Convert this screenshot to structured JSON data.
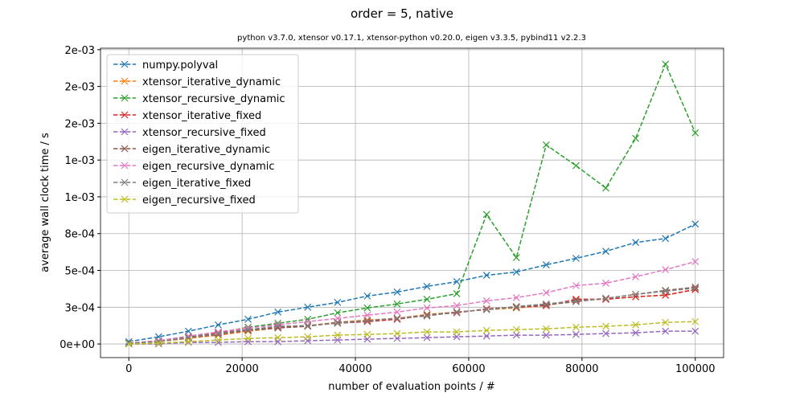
{
  "chart_data": {
    "type": "line",
    "title": "order = 5, native",
    "subtitle": "python v3.7.0, xtensor v0.17.1, xtensor-python v0.20.0, eigen v3.3.5, pybind11 v2.2.3",
    "x_label": "number of evaluation points / #",
    "y_label": "average wall clock time / s",
    "x": [
      0,
      5263,
      10526,
      15789,
      21053,
      26316,
      31579,
      36842,
      42105,
      47368,
      52632,
      57895,
      63158,
      68421,
      73684,
      78947,
      84211,
      89474,
      94737,
      100000
    ],
    "xlim": [
      -5000,
      105000
    ],
    "xticks": [
      0,
      20000,
      40000,
      60000,
      80000,
      100000
    ],
    "ylim": [
      -9.24e-05,
      0.00201
    ],
    "yticks": [
      {
        "value": 0,
        "label": "0e+00"
      },
      {
        "value": 0.00025,
        "label": "3e-04"
      },
      {
        "value": 0.0005,
        "label": "5e-04"
      },
      {
        "value": 0.00075,
        "label": "8e-04"
      },
      {
        "value": 0.001,
        "label": "1e-03"
      },
      {
        "value": 0.00125,
        "label": "1e-03"
      },
      {
        "value": 0.0015,
        "label": "2e-03"
      },
      {
        "value": 0.00175,
        "label": "2e-03"
      },
      {
        "value": 0.002,
        "label": "2e-03"
      }
    ],
    "grid": true,
    "legend": "upper-left",
    "series": [
      {
        "name": "numpy.polyval",
        "color": "#1f77b4",
        "values": [
          1.6e-05,
          4.9e-05,
          8.7e-05,
          0.00013,
          0.000168,
          0.000217,
          0.00025,
          0.000283,
          0.000326,
          0.000353,
          0.000391,
          0.000424,
          0.000467,
          0.000489,
          0.000538,
          0.000582,
          0.00063,
          0.00069,
          0.000717,
          0.000815
        ]
      },
      {
        "name": "xtensor_iterative_dynamic",
        "color": "#ff7f0e",
        "values": [
          5e-06,
          1.6e-05,
          3.8e-05,
          6e-05,
          8.7e-05,
          0.000109,
          0.000125,
          0.000147,
          0.000163,
          0.000174,
          0.000201,
          0.000217,
          0.000234,
          0.000245,
          0.000261,
          0.000299,
          0.000304,
          0.000321,
          0.000332,
          0.00037
        ]
      },
      {
        "name": "xtensor_recursive_dynamic",
        "color": "#2ca02c",
        "values": [
          5e-06,
          2.2e-05,
          4.9e-05,
          7.6e-05,
          0.000114,
          0.000141,
          0.000168,
          0.000212,
          0.000245,
          0.000272,
          0.000304,
          0.000342,
          0.00088,
          0.000587,
          0.001353,
          0.001212,
          0.00106,
          0.001397,
          0.001902,
          0.001435
        ]
      },
      {
        "name": "xtensor_iterative_fixed",
        "color": "#d62728",
        "values": [
          5e-06,
          2.2e-05,
          4.3e-05,
          7.6e-05,
          9.8e-05,
          0.000114,
          0.000125,
          0.000141,
          0.000152,
          0.000168,
          0.000196,
          0.000212,
          0.000239,
          0.00025,
          0.000261,
          0.000304,
          0.000304,
          0.000321,
          0.000332,
          0.00037
        ]
      },
      {
        "name": "xtensor_recursive_fixed",
        "color": "#9467bd",
        "values": [
          0,
          0,
          1.1e-05,
          1.1e-05,
          1.6e-05,
          1.6e-05,
          2.2e-05,
          2.7e-05,
          3.3e-05,
          3.8e-05,
          4.3e-05,
          4.9e-05,
          5.4e-05,
          6e-05,
          6e-05,
          6.5e-05,
          7.1e-05,
          7.6e-05,
          8.7e-05,
          8.7e-05
        ]
      },
      {
        "name": "eigen_iterative_dynamic",
        "color": "#8c564b",
        "values": [
          5e-06,
          1.6e-05,
          4.3e-05,
          6.5e-05,
          9.2e-05,
          0.000109,
          0.00012,
          0.000147,
          0.000158,
          0.000174,
          0.000196,
          0.000217,
          0.000234,
          0.00025,
          0.000266,
          0.000288,
          0.00031,
          0.000337,
          0.000364,
          0.000386
        ]
      },
      {
        "name": "eigen_recursive_dynamic",
        "color": "#e377c2",
        "values": [
          5e-06,
          2.2e-05,
          5.4e-05,
          8.2e-05,
          0.000109,
          0.00013,
          0.000152,
          0.000174,
          0.000196,
          0.000217,
          0.000245,
          0.000261,
          0.000293,
          0.000315,
          0.000348,
          0.000397,
          0.000413,
          0.000457,
          0.000505,
          0.00056
        ]
      },
      {
        "name": "eigen_iterative_fixed",
        "color": "#7f7f7f",
        "values": [
          5e-06,
          1.6e-05,
          4.3e-05,
          7.1e-05,
          9.8e-05,
          0.00012,
          0.000125,
          0.000141,
          0.000158,
          0.000174,
          0.00019,
          0.000217,
          0.000234,
          0.000255,
          0.000272,
          0.000293,
          0.00031,
          0.000337,
          0.000359,
          0.00038
        ]
      },
      {
        "name": "eigen_recursive_fixed",
        "color": "#bcbd22",
        "values": [
          0,
          5e-06,
          1.6e-05,
          2.7e-05,
          3.8e-05,
          4.3e-05,
          4.9e-05,
          6e-05,
          6.5e-05,
          7.1e-05,
          8.2e-05,
          8.2e-05,
          9.2e-05,
          9.8e-05,
          0.000103,
          0.000114,
          0.00012,
          0.00013,
          0.000147,
          0.000152
        ]
      }
    ]
  }
}
